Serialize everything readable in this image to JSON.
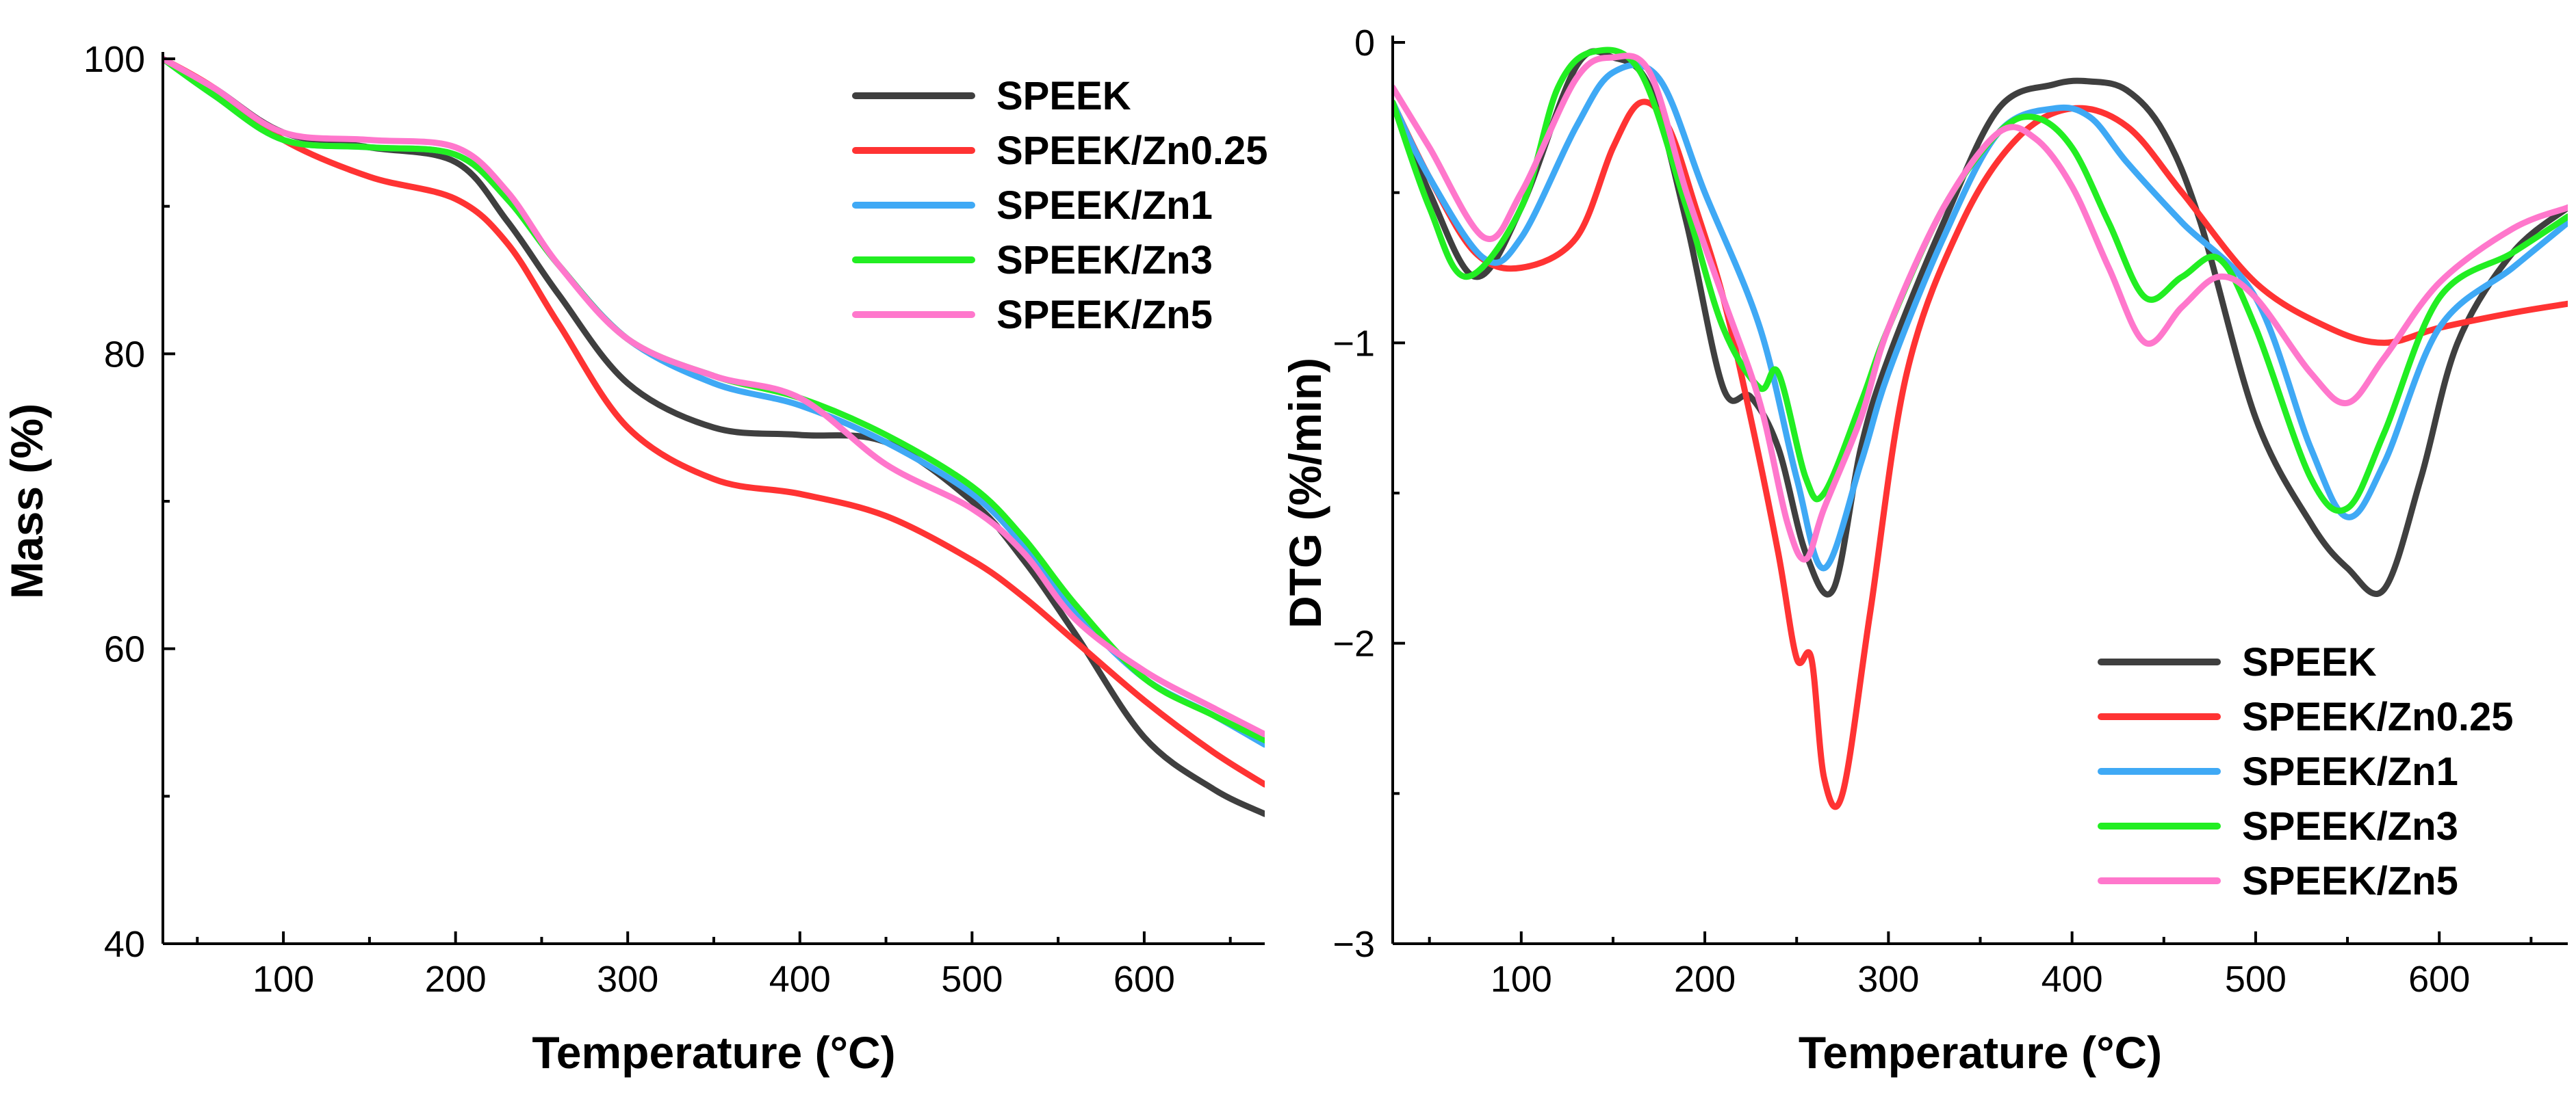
{
  "chart_data": [
    {
      "type": "line",
      "xlabel": "Temperature (°C)",
      "ylabel": "Mass (%)",
      "xlim": [
        30,
        670
      ],
      "ylim": [
        40,
        100
      ],
      "xticks": [
        100,
        200,
        300,
        400,
        500,
        600
      ],
      "yticks": [
        40,
        60,
        80,
        100
      ],
      "legend_position": "top-right",
      "series": [
        {
          "name": "SPEEK",
          "color": "#3f3f3f",
          "x": [
            30,
            60,
            100,
            150,
            200,
            230,
            260,
            300,
            350,
            400,
            450,
            500,
            530,
            560,
            600,
            640,
            670
          ],
          "values": [
            100,
            98,
            95,
            94,
            93,
            89,
            84,
            78,
            75,
            74.5,
            74,
            70,
            66,
            61,
            54,
            50.5,
            48.8
          ]
        },
        {
          "name": "SPEEK/Zn0.25",
          "color": "#ff3333",
          "x": [
            30,
            60,
            100,
            150,
            200,
            230,
            260,
            300,
            350,
            400,
            450,
            500,
            530,
            560,
            600,
            640,
            670
          ],
          "values": [
            100,
            98,
            94.5,
            92,
            90.5,
            87.5,
            82,
            75,
            71.5,
            70.5,
            69,
            66,
            63.5,
            60.5,
            56.5,
            53,
            50.8
          ]
        },
        {
          "name": "SPEEK/Zn1",
          "color": "#3fa9f5",
          "x": [
            30,
            60,
            100,
            150,
            200,
            230,
            260,
            300,
            350,
            400,
            450,
            500,
            530,
            560,
            600,
            640,
            670
          ],
          "values": [
            100,
            97.5,
            94.5,
            94,
            93.5,
            90.5,
            86,
            81,
            78,
            76.5,
            74,
            70.5,
            67,
            62.5,
            58,
            55.5,
            53.5
          ]
        },
        {
          "name": "SPEEK/Zn3",
          "color": "#22ee22",
          "x": [
            30,
            60,
            100,
            150,
            200,
            230,
            260,
            300,
            350,
            400,
            450,
            500,
            530,
            560,
            600,
            640,
            670
          ],
          "values": [
            100,
            97.5,
            94.5,
            94,
            93.5,
            90.5,
            86,
            81,
            78.5,
            77,
            74.5,
            71,
            67.5,
            63,
            58,
            55.5,
            53.8
          ]
        },
        {
          "name": "SPEEK/Zn5",
          "color": "#ff77cc",
          "x": [
            30,
            60,
            100,
            150,
            200,
            230,
            260,
            300,
            350,
            400,
            450,
            500,
            530,
            560,
            600,
            640,
            670
          ],
          "values": [
            100,
            98,
            95,
            94.5,
            94,
            91,
            86,
            81,
            78.5,
            77,
            72.5,
            69.5,
            66.5,
            62,
            58.5,
            56,
            54.2
          ]
        }
      ]
    },
    {
      "type": "line",
      "xlabel": "Temperature (°C)",
      "ylabel": "DTG (%/min)",
      "xlim": [
        30,
        670
      ],
      "ylim": [
        -3,
        0
      ],
      "xticks": [
        100,
        200,
        300,
        400,
        500,
        600
      ],
      "yticks": [
        -3,
        -2,
        -1,
        0
      ],
      "legend_position": "bottom-right",
      "series": [
        {
          "name": "SPEEK",
          "color": "#3f3f3f",
          "x": [
            30,
            50,
            75,
            100,
            130,
            150,
            170,
            190,
            210,
            225,
            240,
            255,
            270,
            285,
            300,
            330,
            360,
            390,
            410,
            430,
            450,
            470,
            500,
            530,
            550,
            570,
            590,
            610,
            640,
            670
          ],
          "values": [
            -0.2,
            -0.5,
            -0.78,
            -0.55,
            -0.08,
            -0.05,
            -0.15,
            -0.6,
            -1.15,
            -1.18,
            -1.35,
            -1.7,
            -1.82,
            -1.35,
            -1.05,
            -0.6,
            -0.22,
            -0.14,
            -0.13,
            -0.16,
            -0.3,
            -0.6,
            -1.25,
            -1.6,
            -1.75,
            -1.82,
            -1.45,
            -1.0,
            -0.7,
            -0.55
          ]
        },
        {
          "name": "SPEEK/Zn0.25",
          "color": "#ff3333",
          "x": [
            30,
            50,
            75,
            100,
            130,
            150,
            165,
            180,
            195,
            210,
            225,
            240,
            250,
            258,
            265,
            275,
            290,
            310,
            340,
            370,
            400,
            430,
            460,
            500,
            540,
            570,
            600,
            640,
            670
          ],
          "values": [
            -0.2,
            -0.45,
            -0.7,
            -0.75,
            -0.65,
            -0.35,
            -0.2,
            -0.28,
            -0.55,
            -0.85,
            -1.25,
            -1.7,
            -2.05,
            -2.05,
            -2.45,
            -2.5,
            -1.9,
            -1.1,
            -0.6,
            -0.32,
            -0.22,
            -0.28,
            -0.5,
            -0.8,
            -0.95,
            -1.0,
            -0.95,
            -0.9,
            -0.87
          ]
        },
        {
          "name": "SPEEK/Zn1",
          "color": "#3fa9f5",
          "x": [
            30,
            50,
            80,
            100,
            130,
            150,
            175,
            200,
            230,
            250,
            265,
            285,
            300,
            330,
            360,
            390,
            410,
            430,
            460,
            500,
            530,
            550,
            570,
            600,
            640,
            670
          ],
          "values": [
            -0.2,
            -0.45,
            -0.72,
            -0.65,
            -0.28,
            -0.1,
            -0.12,
            -0.5,
            -0.95,
            -1.45,
            -1.75,
            -1.4,
            -1.1,
            -0.65,
            -0.3,
            -0.22,
            -0.25,
            -0.4,
            -0.6,
            -0.85,
            -1.35,
            -1.58,
            -1.4,
            -0.95,
            -0.75,
            -0.6
          ]
        },
        {
          "name": "SPEEK/Zn3",
          "color": "#22ee22",
          "x": [
            30,
            50,
            70,
            100,
            120,
            140,
            165,
            190,
            210,
            230,
            240,
            255,
            265,
            285,
            300,
            330,
            360,
            380,
            400,
            420,
            440,
            460,
            480,
            500,
            530,
            550,
            570,
            600,
            640,
            670
          ],
          "values": [
            -0.2,
            -0.55,
            -0.78,
            -0.55,
            -0.15,
            -0.03,
            -0.1,
            -0.55,
            -0.95,
            -1.15,
            -1.1,
            -1.45,
            -1.5,
            -1.2,
            -0.95,
            -0.55,
            -0.3,
            -0.25,
            -0.35,
            -0.6,
            -0.85,
            -0.78,
            -0.72,
            -0.95,
            -1.45,
            -1.55,
            -1.3,
            -0.85,
            -0.7,
            -0.58
          ]
        },
        {
          "name": "SPEEK/Zn5",
          "color": "#ff77cc",
          "x": [
            30,
            50,
            80,
            100,
            130,
            150,
            170,
            190,
            210,
            230,
            245,
            255,
            265,
            285,
            300,
            330,
            360,
            380,
            400,
            420,
            440,
            460,
            480,
            500,
            530,
            550,
            570,
            600,
            640,
            670
          ],
          "values": [
            -0.15,
            -0.35,
            -0.65,
            -0.5,
            -0.12,
            -0.05,
            -0.1,
            -0.5,
            -0.85,
            -1.2,
            -1.6,
            -1.72,
            -1.55,
            -1.25,
            -0.95,
            -0.55,
            -0.3,
            -0.32,
            -0.48,
            -0.75,
            -1.0,
            -0.88,
            -0.78,
            -0.85,
            -1.1,
            -1.2,
            -1.05,
            -0.8,
            -0.62,
            -0.55
          ]
        }
      ]
    }
  ]
}
